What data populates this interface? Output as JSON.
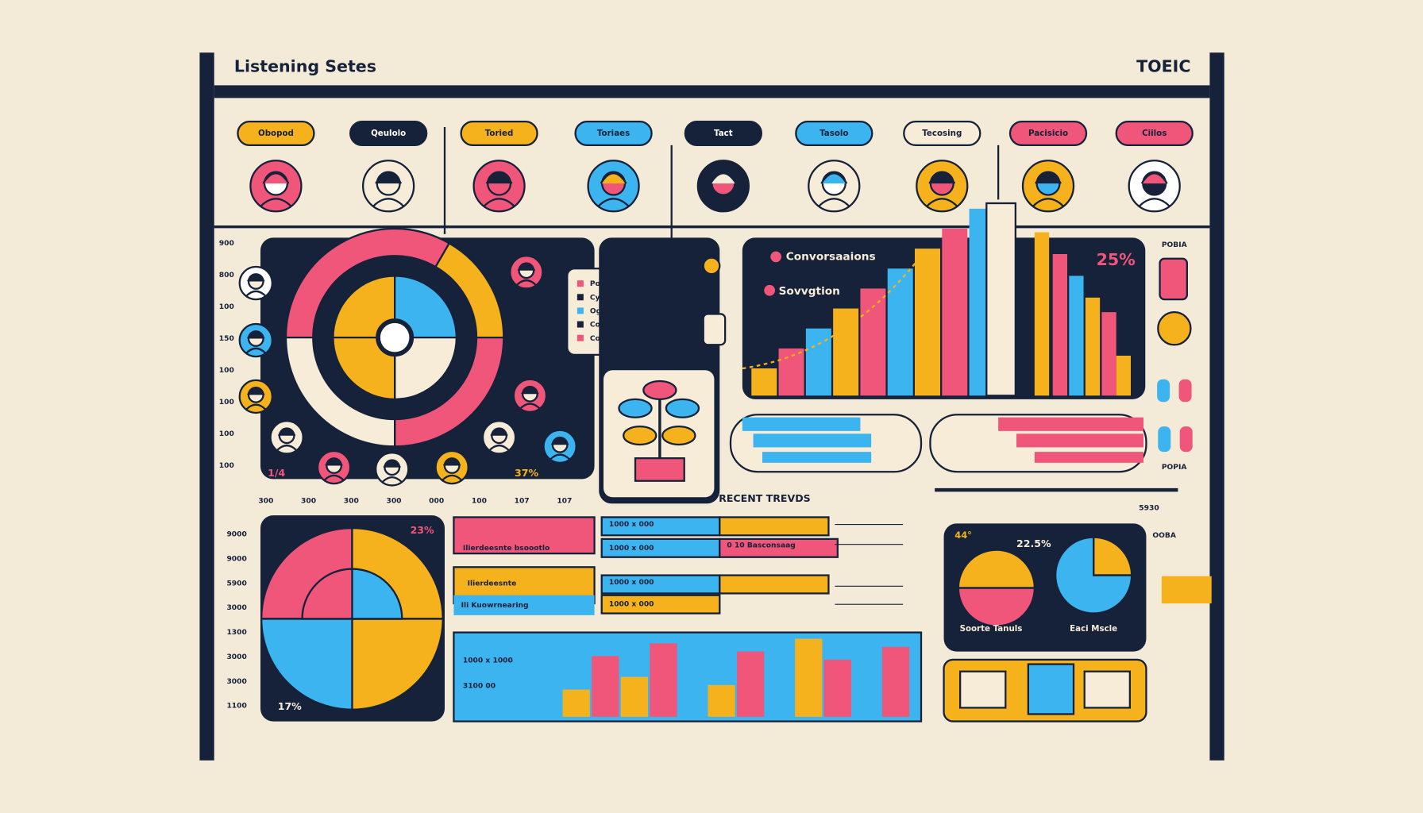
{
  "header": {
    "title": "Listening Setes",
    "brand": "TOEIC"
  },
  "tabs": [
    "Obopod",
    "Qeulolo",
    "Toried",
    "Toriaes",
    "Tact",
    "Tasolo",
    "Tecosing",
    "Pacisicio",
    "Ciilos"
  ],
  "topPanel": {
    "yaxis": [
      "900",
      "800",
      "100",
      "150",
      "100",
      "100",
      "100",
      "100"
    ],
    "xaxis": [
      "300",
      "300",
      "300",
      "300",
      "000",
      "100",
      "107",
      "107"
    ],
    "fraction": "1/4",
    "percent": "37%"
  },
  "legend": [
    "Postuvpre",
    "Cygestitiaco",
    "Ognoctiaose",
    "Cotel casaltes",
    "Cosoipio"
  ],
  "trends": {
    "series": [
      "Convorsaaions",
      "Sovvgtion"
    ],
    "percent": "25%"
  },
  "sidebar": {
    "top": "POBIA",
    "bottom": "POPIA"
  },
  "recent": {
    "title": "RECENT TREVDS",
    "tag": "5930"
  },
  "piePanel": {
    "yaxis": [
      "9000",
      "9000",
      "5900",
      "3000",
      "1300",
      "3000",
      "3000",
      "1100"
    ],
    "top": "23%",
    "bottom": "17%"
  },
  "table": {
    "left": [
      "Ilierdeesnte bsoootlo",
      "Ilierdeesnte",
      "Ili Kuowrnearing"
    ],
    "right": [
      "1000 x 000",
      "1000 x 000",
      "0 10 Basconsaag",
      "1000 x 000",
      "1000 x 000"
    ]
  },
  "lowerTrend": [
    "1000 x 1000",
    "3100 00"
  ],
  "summary": {
    "left": "44°",
    "right": "22.5%",
    "labels": [
      "Soorte Tanuls",
      "Eaci Mscle"
    ],
    "tag": "OOBA"
  }
}
